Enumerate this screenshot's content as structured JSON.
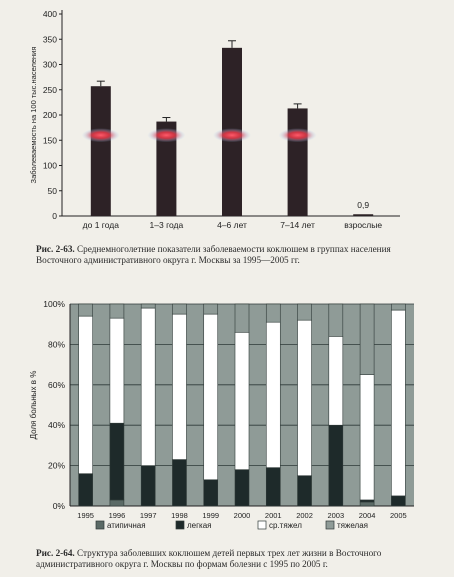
{
  "figure1": {
    "caption_label": "Рис. 2-63.",
    "caption_text": "Среднемноголетние показатели заболеваемости коклюшем в группах населения Восточного административного округа г. Москвы за 1995—2005 гг.",
    "chart_data": {
      "type": "bar",
      "ylabel": "Заболеваемость на 100 тыс.населения",
      "ylim": [
        0,
        400
      ],
      "yticks": [
        0,
        50,
        100,
        150,
        200,
        250,
        300,
        350,
        400
      ],
      "categories": [
        "до 1 года",
        "1–3 года",
        "4–6 лет",
        "7–14 лет",
        "взрослые"
      ],
      "values": [
        257,
        187,
        333,
        213,
        0.9
      ],
      "errors": [
        10,
        8,
        14,
        9,
        0
      ],
      "data_labels": [
        "",
        "",
        "",
        "",
        "0,9"
      ],
      "bar_color": "#2d2226",
      "highlight_color": "#e83848",
      "grid": false
    }
  },
  "figure2": {
    "caption_label": "Рис. 2-64.",
    "caption_text": "Структура заболевших коклюшем детей первых трех лет жизни в Восточного административного округа г. Москвы по формам болезни с 1995 по 2005 г.",
    "chart_data": {
      "type": "bar",
      "stacked": true,
      "ylabel": "Доля больных в %",
      "ylim": [
        0,
        100
      ],
      "yticks": [
        "0%",
        "20%",
        "40%",
        "60%",
        "80%",
        "100%"
      ],
      "categories": [
        "1995",
        "1996",
        "1997",
        "1998",
        "1999",
        "2000",
        "2001",
        "2002",
        "2003",
        "2004",
        "2005"
      ],
      "series": [
        {
          "name": "атипичная",
          "color": "#5b6a66",
          "values": [
            0,
            3,
            0,
            0,
            0,
            0,
            0,
            0,
            0,
            2,
            0
          ]
        },
        {
          "name": "легкая",
          "color": "#1e2a2a",
          "values": [
            16,
            38,
            20,
            23,
            13,
            18,
            19,
            15,
            40,
            1,
            5
          ]
        },
        {
          "name": "ср.тяжел",
          "color": "#ffffff",
          "values": [
            78,
            52,
            78,
            72,
            82,
            68,
            72,
            77,
            44,
            62,
            92
          ]
        },
        {
          "name": "тяжелая",
          "color": "#8f9b97",
          "values": [
            6,
            7,
            2,
            5,
            5,
            14,
            9,
            8,
            16,
            35,
            3
          ]
        }
      ],
      "legend_position": "bottom",
      "grid": true
    }
  }
}
